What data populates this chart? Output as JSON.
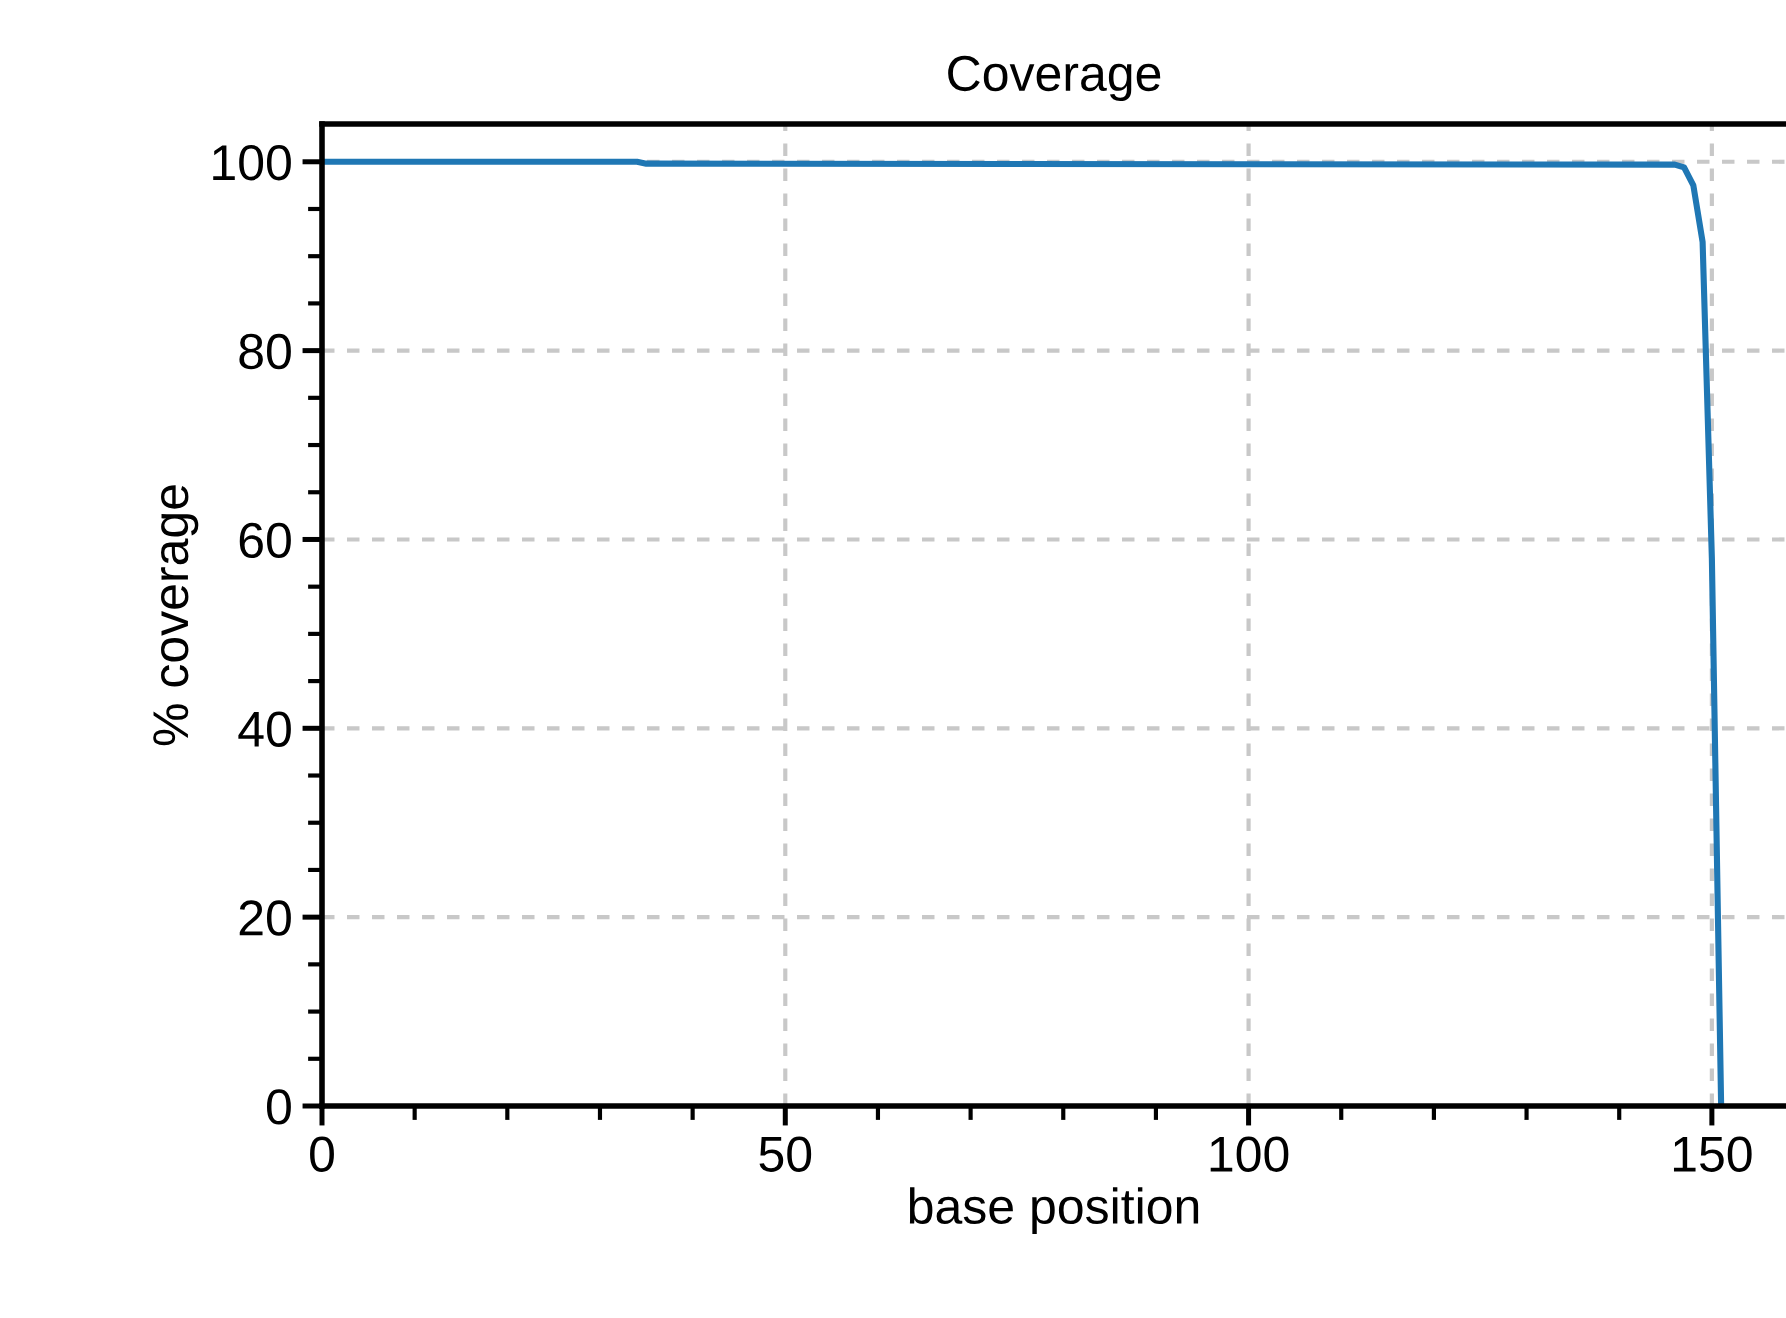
{
  "chart_data": {
    "type": "line",
    "title": "Coverage",
    "xlabel": "base position",
    "ylabel": "% coverage",
    "series": [
      {
        "color": "#1f77b4",
        "x": [
          0,
          34,
          35,
          146,
          147,
          148,
          149,
          150,
          151
        ],
        "values": [
          100,
          100,
          99.8,
          99.7,
          99.4,
          97.5,
          91.5,
          58,
          0
        ]
      }
    ],
    "xlim": [
      0,
      158
    ],
    "xticks": [
      0,
      50,
      100,
      150
    ],
    "ylim": [
      0,
      104
    ],
    "yticks": [
      0,
      20,
      40,
      60,
      80,
      100
    ],
    "grid": true,
    "marker": "none",
    "line_style": "solid"
  }
}
